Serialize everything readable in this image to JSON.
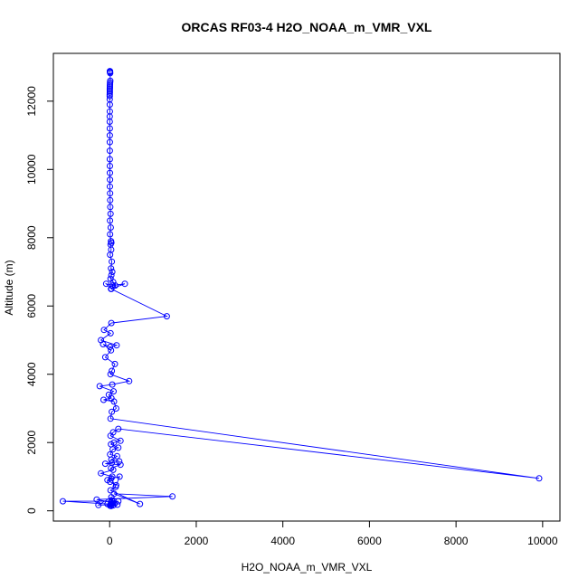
{
  "chart_data": {
    "type": "line",
    "title": "ORCAS RF03-4 H2O_NOAA_m_VMR_VXL",
    "xlabel": "H2O_NOAA_m_VMR_VXL",
    "ylabel": "Altitude (m)",
    "xlim": [
      -1300,
      10400
    ],
    "ylim": [
      -300,
      13400
    ],
    "xticks": [
      0,
      2000,
      4000,
      6000,
      8000,
      10000
    ],
    "yticks": [
      0,
      2000,
      4000,
      6000,
      8000,
      10000,
      12000
    ],
    "grid": false,
    "legend": "none",
    "marker": "open-circle",
    "series": [
      {
        "color": "#0000ff",
        "x": [
          5,
          10,
          8,
          12,
          15,
          10,
          8,
          6,
          5,
          4,
          3,
          3,
          2,
          2,
          2,
          3,
          3,
          2,
          2,
          3,
          3,
          4,
          4,
          3,
          5,
          6,
          8,
          5,
          10,
          12,
          15,
          20,
          8,
          25,
          10,
          30,
          40,
          20,
          35,
          10,
          50,
          30,
          60,
          40,
          20,
          80,
          130,
          30,
          350,
          70,
          -80,
          40,
          1320,
          40,
          -130,
          20,
          -200,
          160,
          10,
          -150,
          30,
          -100,
          120,
          50,
          20,
          450,
          60,
          -230,
          90,
          -20,
          40,
          -140,
          100,
          150,
          50,
          20,
          9920,
          200,
          80,
          20,
          250,
          100,
          30,
          200,
          70,
          10,
          170,
          40,
          220,
          50,
          -100,
          250,
          30,
          80,
          -200,
          60,
          -50,
          10,
          150,
          230,
          40,
          140,
          20,
          700,
          100,
          1450,
          -300,
          30,
          200,
          -1080,
          -50,
          10,
          60,
          80,
          40,
          -260,
          180,
          30,
          120,
          80,
          50,
          30,
          20
        ],
        "y": [
          12880,
          12870,
          12850,
          12820,
          12600,
          12550,
          12500,
          12450,
          12400,
          12350,
          12300,
          12250,
          12200,
          12150,
          12050,
          11900,
          11700,
          11550,
          11400,
          11200,
          11000,
          10800,
          10550,
          10300,
          10100,
          9900,
          9700,
          9500,
          9300,
          9100,
          8900,
          8700,
          8500,
          8300,
          8100,
          7900,
          7850,
          7800,
          7650,
          7500,
          7300,
          7100,
          7000,
          6900,
          6800,
          6700,
          6600,
          6500,
          6650,
          6600,
          6650,
          6500,
          5700,
          5500,
          5300,
          5200,
          5000,
          4850,
          4800,
          4880,
          4700,
          4500,
          4300,
          4100,
          4000,
          3800,
          3700,
          3650,
          3500,
          3400,
          3300,
          3250,
          3200,
          3000,
          2900,
          2700,
          950,
          2400,
          2300,
          2200,
          2050,
          2000,
          1950,
          1850,
          1800,
          1650,
          1600,
          1500,
          1450,
          1400,
          1380,
          1350,
          1250,
          1200,
          1100,
          1000,
          900,
          850,
          750,
          1000,
          950,
          700,
          600,
          200,
          500,
          420,
          330,
          250,
          280,
          280,
          200,
          150,
          220,
          300,
          400,
          170,
          180,
          140,
          220,
          160,
          300,
          200,
          180
        ]
      }
    ]
  }
}
